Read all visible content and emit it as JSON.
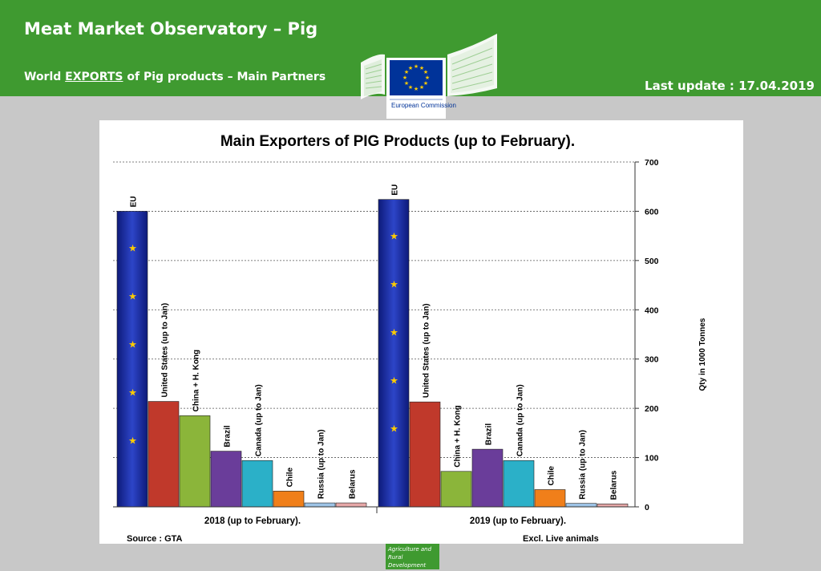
{
  "header": {
    "title": "Meat Market Observatory – Pig",
    "subtitle_prefix": "World ",
    "subtitle_emph": "EXPORTS",
    "subtitle_suffix": " of Pig products – Main Partners",
    "last_update": "Last update : 17.04.2019",
    "logo_text": "European Commission",
    "background_color": "#3f9a30"
  },
  "footer": {
    "badge_text": "Agriculture and Rural Development"
  },
  "chart_data": {
    "type": "bar",
    "title": "Main Exporters of PIG Products (up to February).",
    "ylabel": "Qty in 1000 Tonnes",
    "ylim": [
      0,
      700
    ],
    "yticks": [
      0,
      100,
      200,
      300,
      400,
      500,
      600,
      700
    ],
    "y_axis_position": "right",
    "grid": true,
    "source": "Source : GTA",
    "note": "Excl. Live animals",
    "groups": [
      {
        "label": "2018 (up to February).",
        "bars": [
          {
            "name": "EU",
            "value": 600,
            "color": "#1a2b9a"
          },
          {
            "name": "United States (up to Jan)",
            "value": 214,
            "color": "#c0392b"
          },
          {
            "name": "China + H. Kong",
            "value": 185,
            "color": "#8bb53a"
          },
          {
            "name": "Brazil",
            "value": 113,
            "color": "#6a3d9a"
          },
          {
            "name": "Canada (up to Jan)",
            "value": 94,
            "color": "#2bb0c8"
          },
          {
            "name": "Chile",
            "value": 32,
            "color": "#f07f1a"
          },
          {
            "name": "Russia (up to Jan)",
            "value": 8,
            "color": "#9dc3e6"
          },
          {
            "name": "Belarus",
            "value": 8,
            "color": "#e6a7a7"
          }
        ]
      },
      {
        "label": "2019 (up to February).",
        "bars": [
          {
            "name": "EU",
            "value": 624,
            "color": "#1a2b9a"
          },
          {
            "name": "United States (up to Jan)",
            "value": 213,
            "color": "#c0392b"
          },
          {
            "name": "China + H. Kong",
            "value": 72,
            "color": "#8bb53a"
          },
          {
            "name": "Brazil",
            "value": 117,
            "color": "#6a3d9a"
          },
          {
            "name": "Canada (up to Jan)",
            "value": 94,
            "color": "#2bb0c8"
          },
          {
            "name": "Chile",
            "value": 35,
            "color": "#f07f1a"
          },
          {
            "name": "Russia (up to Jan)",
            "value": 7,
            "color": "#9dc3e6"
          },
          {
            "name": "Belarus",
            "value": 6,
            "color": "#e6a7a7"
          }
        ]
      }
    ]
  }
}
